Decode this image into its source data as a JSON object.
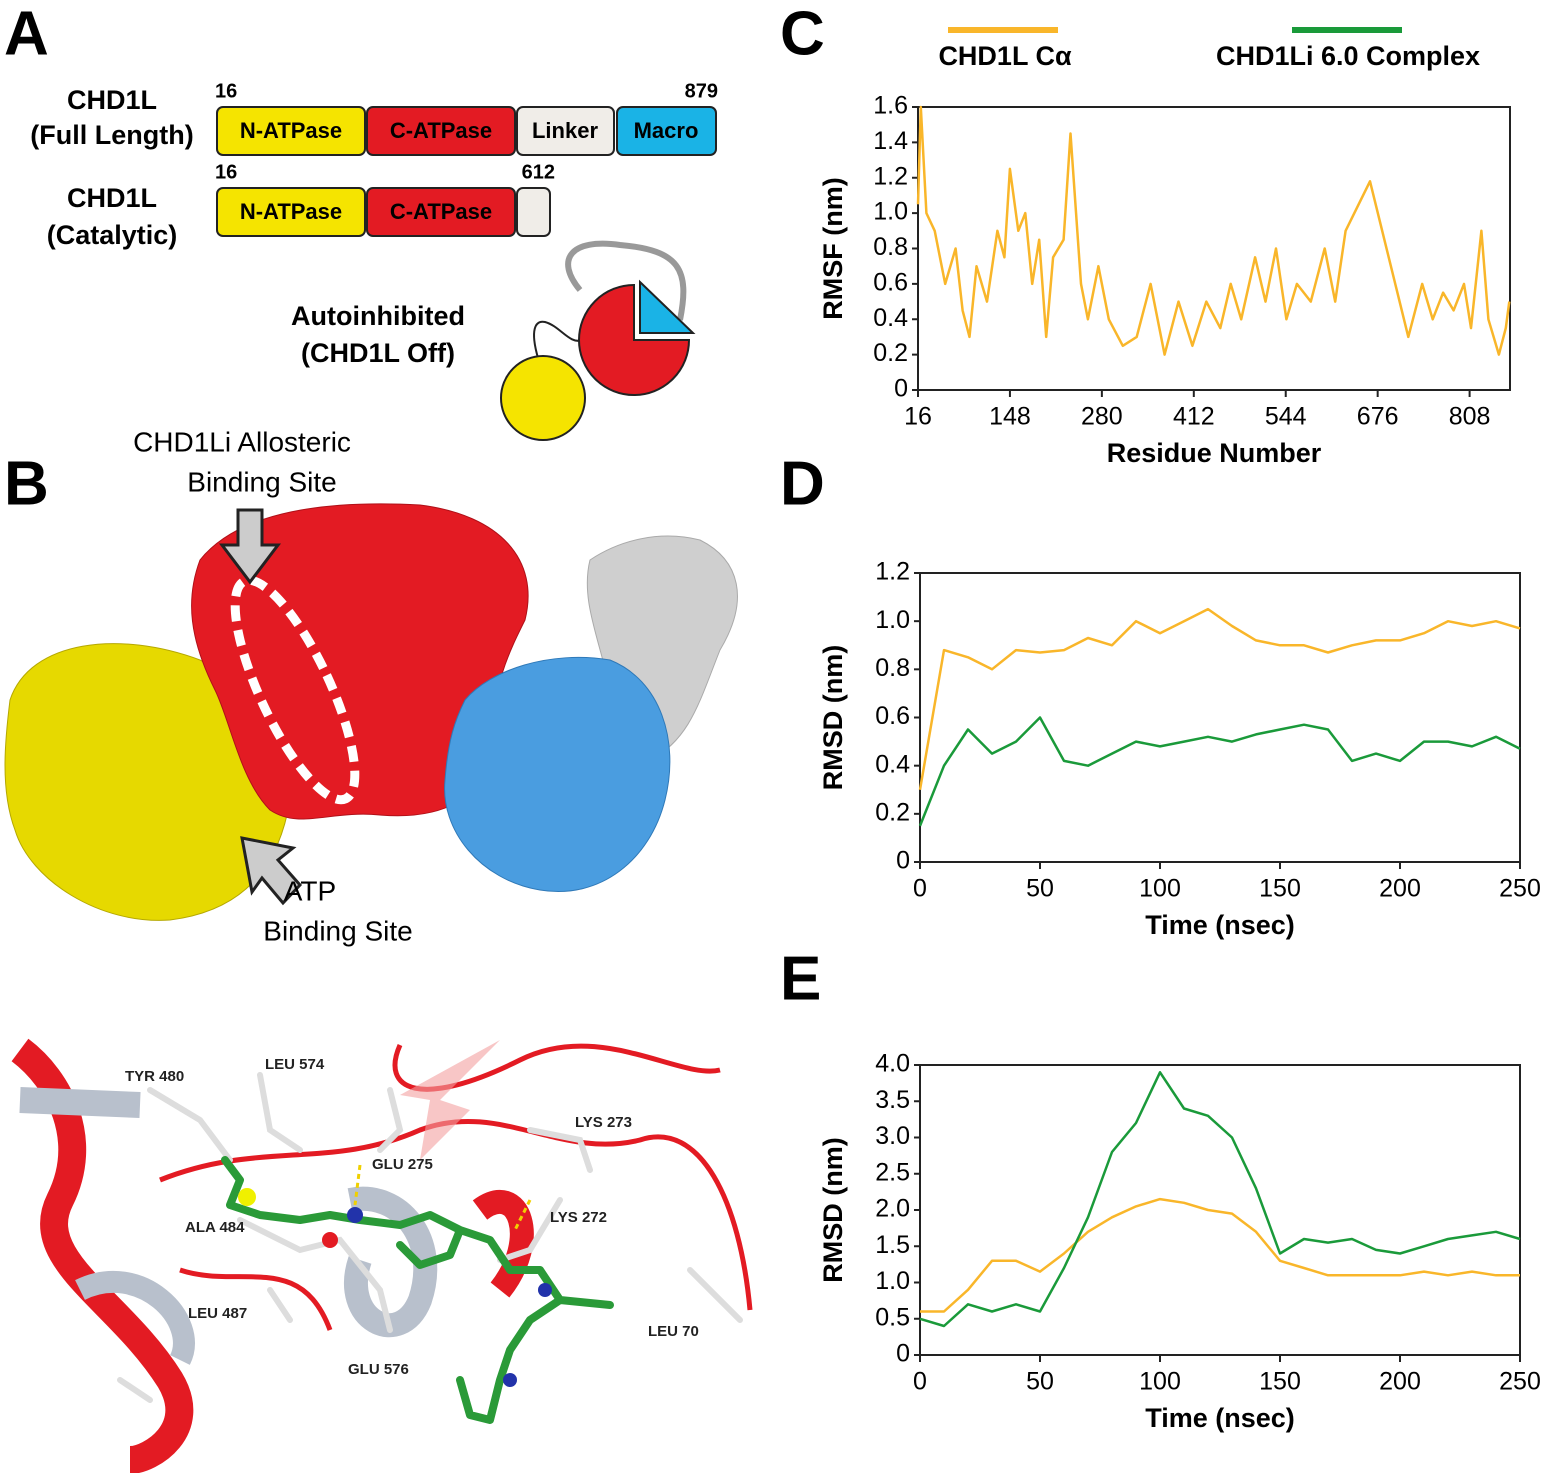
{
  "panel_a": {
    "label": "A",
    "full": {
      "name": "CHD1L",
      "subtitle": "(Full Length)",
      "start": "16",
      "end": "879",
      "domains": [
        "N-ATPase",
        "C-ATPase",
        "Linker",
        "Macro"
      ]
    },
    "catalytic": {
      "name": "CHD1L",
      "subtitle": "(Catalytic)",
      "start": "16",
      "end": "612",
      "domains": [
        "N-ATPase",
        "C-ATPase"
      ]
    },
    "state": [
      "Autoinhibited",
      "(CHD1L Off)"
    ]
  },
  "panel_b": {
    "label": "B",
    "allosteric": [
      "CHD1Li Allosteric",
      "Binding Site"
    ],
    "atp": [
      "ATP",
      "Binding Site"
    ],
    "residues": [
      "TYR 480",
      "LEU 574",
      "LYS 273",
      "GLU 275",
      "LYS 272",
      "ALA 484",
      "LEU 487",
      "GLU 576",
      "LEU 70"
    ]
  },
  "chart_data": [
    {
      "type": "line",
      "panel": "C",
      "ylabel": "RMSF (nm)",
      "xlabel": "Residue Number",
      "x": [
        16,
        20,
        28,
        40,
        55,
        70,
        80,
        90,
        100,
        115,
        130,
        140,
        148,
        160,
        170,
        180,
        190,
        200,
        210,
        225,
        235,
        250,
        260,
        275,
        290,
        310,
        330,
        350,
        370,
        390,
        410,
        430,
        450,
        465,
        480,
        500,
        515,
        530,
        545,
        560,
        580,
        600,
        615,
        630,
        665,
        720,
        740,
        755,
        770,
        785,
        800,
        810,
        825,
        835,
        850,
        860,
        865
      ],
      "series": [
        {
          "color": "#f9b62a",
          "values": [
            1.05,
            1.6,
            1.0,
            0.9,
            0.6,
            0.8,
            0.45,
            0.3,
            0.7,
            0.5,
            0.9,
            0.75,
            1.25,
            0.9,
            1.0,
            0.6,
            0.85,
            0.3,
            0.75,
            0.85,
            1.45,
            0.6,
            0.4,
            0.7,
            0.4,
            0.25,
            0.3,
            0.6,
            0.2,
            0.5,
            0.25,
            0.5,
            0.35,
            0.6,
            0.4,
            0.75,
            0.5,
            0.8,
            0.4,
            0.6,
            0.5,
            0.8,
            0.5,
            0.9,
            1.18,
            0.3,
            0.6,
            0.4,
            0.55,
            0.45,
            0.6,
            0.35,
            0.9,
            0.4,
            0.2,
            0.35,
            0.5
          ]
        }
      ],
      "xlim": [
        16,
        866
      ],
      "xticks": [
        16,
        148,
        280,
        412,
        544,
        676,
        808
      ],
      "ylim": [
        0,
        1.6
      ],
      "yticks": [
        0,
        0.2,
        0.4,
        0.6,
        0.8,
        {
          "value": 1,
          "label": "1.0"
        },
        1.2,
        1.4,
        1.6
      ]
    },
    {
      "type": "line",
      "panel": "D",
      "ylabel": "RMSD (nm)",
      "xlabel": "Time (nsec)",
      "x": [
        0,
        10,
        20,
        30,
        40,
        50,
        60,
        70,
        80,
        90,
        100,
        110,
        120,
        130,
        140,
        150,
        160,
        170,
        180,
        190,
        200,
        210,
        220,
        230,
        240,
        250
      ],
      "series": [
        {
          "name": "CHD1L Cα",
          "color": "#f9b62a",
          "values": [
            0.3,
            0.88,
            0.85,
            0.8,
            0.88,
            0.87,
            0.88,
            0.93,
            0.9,
            1.0,
            0.95,
            1.0,
            1.05,
            0.98,
            0.92,
            0.9,
            0.9,
            0.87,
            0.9,
            0.92,
            0.92,
            0.95,
            1.0,
            0.98,
            1.0,
            0.97
          ]
        },
        {
          "name": "CHD1Li 6.0 Complex",
          "color": "#1a9a3a",
          "values": [
            0.15,
            0.4,
            0.55,
            0.45,
            0.5,
            0.6,
            0.42,
            0.4,
            0.45,
            0.5,
            0.48,
            0.5,
            0.52,
            0.5,
            0.53,
            0.55,
            0.57,
            0.55,
            0.42,
            0.45,
            0.42,
            0.5,
            0.5,
            0.48,
            0.52,
            0.47
          ]
        }
      ],
      "xlim": [
        0,
        250
      ],
      "xticks": [
        0,
        50,
        100,
        150,
        200,
        250
      ],
      "ylim": [
        0,
        1.2
      ],
      "yticks": [
        0,
        0.2,
        0.4,
        0.6,
        0.8,
        {
          "value": 1,
          "label": "1.0"
        },
        1.2
      ]
    },
    {
      "type": "line",
      "panel": "E",
      "ylabel": "RMSD (nm)",
      "xlabel": "Time (nsec)",
      "x": [
        0,
        10,
        20,
        30,
        40,
        50,
        60,
        70,
        80,
        90,
        100,
        110,
        120,
        130,
        140,
        150,
        160,
        170,
        180,
        190,
        200,
        210,
        220,
        230,
        240,
        250
      ],
      "series": [
        {
          "color": "#f9b62a",
          "values": [
            0.6,
            0.6,
            0.9,
            1.3,
            1.3,
            1.15,
            1.4,
            1.7,
            1.9,
            2.05,
            2.15,
            2.1,
            2.0,
            1.95,
            1.7,
            1.3,
            1.2,
            1.1,
            1.1,
            1.1,
            1.1,
            1.15,
            1.1,
            1.15,
            1.1,
            1.1
          ]
        },
        {
          "color": "#1a9a3a",
          "values": [
            0.5,
            0.4,
            0.7,
            0.6,
            0.7,
            0.6,
            1.2,
            1.9,
            2.8,
            3.2,
            3.9,
            3.4,
            3.3,
            3.0,
            2.3,
            1.4,
            1.6,
            1.55,
            1.6,
            1.45,
            1.4,
            1.5,
            1.6,
            1.65,
            1.7,
            1.6
          ]
        }
      ],
      "xlim": [
        0,
        250
      ],
      "xticks": [
        0,
        50,
        100,
        150,
        200,
        250
      ],
      "ylim": [
        0,
        4
      ],
      "yticks": [
        0,
        0.5,
        {
          "value": 1,
          "label": "1.0"
        },
        1.5,
        {
          "value": 2,
          "label": "2.0"
        },
        2.5,
        {
          "value": 3,
          "label": "3.0"
        },
        3.5,
        {
          "value": 4,
          "label": "4.0"
        }
      ]
    }
  ]
}
